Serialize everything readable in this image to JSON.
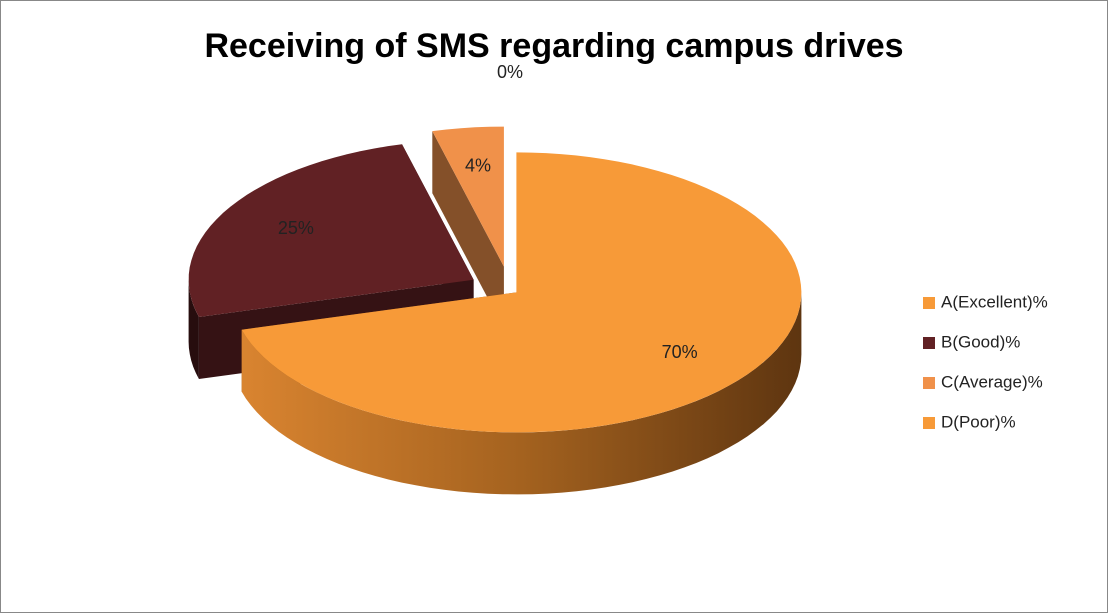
{
  "chart_data": {
    "type": "pie",
    "title": "Receiving of SMS regarding campus drives",
    "categories": [
      "A(Excellent)%",
      "B(Good)%",
      "C(Average)%",
      "D(Poor)%"
    ],
    "values": [
      70,
      25,
      4,
      0
    ],
    "value_labels": [
      "70%",
      "25%",
      "4%",
      "0%"
    ],
    "colors": [
      "#f79a38",
      "#612124",
      "#f0914a",
      "#f79a38"
    ],
    "legend": "right"
  }
}
